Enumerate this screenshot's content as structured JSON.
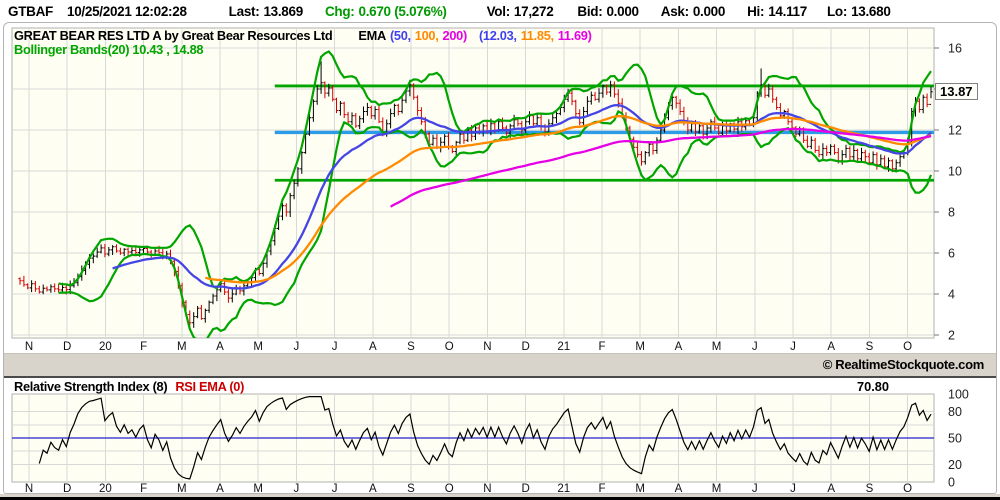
{
  "header": {
    "symbol": "GTBAF",
    "datetime": "10/25/2021 12:02:28",
    "last_label": "Last:",
    "last_value": "13.869",
    "chg_label": "Chg:",
    "chg_value": "0.670 (5.076%)",
    "vol_label": "Vol:",
    "vol_value": "17,272",
    "bid_label": "Bid:",
    "bid_value": "0.000",
    "ask_label": "Ask:",
    "ask_value": "0.000",
    "hi_label": "Hi:",
    "hi_value": "14.117",
    "lo_label": "Lo:",
    "lo_value": "13.680"
  },
  "legend": {
    "title": "GREAT BEAR RES LTD A by Great Bear Resources Ltd",
    "ema_label": "EMA",
    "ema_p1": "(50,",
    "ema_p2": "100,",
    "ema_p3": "200)",
    "ema_v1": "(12.03,",
    "ema_v2": "11.85,",
    "ema_v3": "11.69)",
    "bollinger": "Bollinger Bands(20) 10.43 , 14.88"
  },
  "footer": {
    "copyright": "© RealtimeStockquote.com"
  },
  "rsi_header": {
    "title": "Relative Strength Index (8)",
    "rsi_ema": "RSI EMA (0)",
    "last_value": "70.80"
  },
  "chart_data": [
    {
      "type": "candlestick",
      "title": "GREAT BEAR RES LTD A by Great Bear Resources Ltd",
      "x_labels": [
        "N",
        "D",
        "20",
        "F",
        "M",
        "A",
        "M",
        "J",
        "J",
        "A",
        "S",
        "O",
        "N",
        "D",
        "21",
        "F",
        "M",
        "A",
        "M",
        "J",
        "J",
        "A",
        "S",
        "O"
      ],
      "bars_per_month": 10,
      "last_month_bars": 7,
      "ylim": [
        1.76,
        16.88
      ],
      "yticks": [
        2,
        4,
        6,
        8,
        10,
        12,
        14,
        16
      ],
      "up_color": "#000000",
      "down_color": "#d40000",
      "closes": [
        4.65,
        4.45,
        4.3,
        4.5,
        4.25,
        4.1,
        4.28,
        4.2,
        4.35,
        4.25,
        4.2,
        4.32,
        4.22,
        4.4,
        4.55,
        4.85,
        5.15,
        5.45,
        5.75,
        5.85,
        6.05,
        6.25,
        5.95,
        6.15,
        6.3,
        6.1,
        6.0,
        6.18,
        6.05,
        6.12,
        6.02,
        6.15,
        6.22,
        6.05,
        5.92,
        6.1,
        6.02,
        5.85,
        5.95,
        5.6,
        5.1,
        4.4,
        3.6,
        3.0,
        2.6,
        2.9,
        3.3,
        2.8,
        3.2,
        3.6,
        3.9,
        4.2,
        4.5,
        4.1,
        3.8,
        4.0,
        4.3,
        4.15,
        4.4,
        4.6,
        4.8,
        5.2,
        5.0,
        5.5,
        6.1,
        6.6,
        7.2,
        7.8,
        8.3,
        8.0,
        8.8,
        9.4,
        10.1,
        10.9,
        11.8,
        12.6,
        13.4,
        14.0,
        14.3,
        13.8,
        14.05,
        13.5,
        12.95,
        13.3,
        12.75,
        12.4,
        12.7,
        12.2,
        12.55,
        12.9,
        13.1,
        12.7,
        13.0,
        12.4,
        11.9,
        12.3,
        12.8,
        13.2,
        12.9,
        13.45,
        13.9,
        14.2,
        13.6,
        12.95,
        12.4,
        11.8,
        11.3,
        11.6,
        11.15,
        11.4,
        11.7,
        11.2,
        10.95,
        11.4,
        11.8,
        11.5,
        12.0,
        11.7,
        12.1,
        11.9,
        12.2,
        11.9,
        12.3,
        12.0,
        12.4,
        12.1,
        11.85,
        12.2,
        12.5,
        12.3,
        12.0,
        12.4,
        12.7,
        12.3,
        12.6,
        12.2,
        11.9,
        12.3,
        12.6,
        12.8,
        13.1,
        13.5,
        13.8,
        13.4,
        12.8,
        12.35,
        12.9,
        13.4,
        13.7,
        13.5,
        13.8,
        14.15,
        13.85,
        14.2,
        13.75,
        13.3,
        12.7,
        12.1,
        11.55,
        11.15,
        10.8,
        10.45,
        10.9,
        11.3,
        11.0,
        11.5,
        12.0,
        12.6,
        13.2,
        13.6,
        13.3,
        12.9,
        12.4,
        12.0,
        12.3,
        11.9,
        12.2,
        11.8,
        12.1,
        12.4,
        12.1,
        11.85,
        12.2,
        11.95,
        12.3,
        12.05,
        12.4,
        12.15,
        12.45,
        12.25,
        12.6,
        13.8,
        14.2,
        13.7,
        14.0,
        13.5,
        13.1,
        12.7,
        12.9,
        12.4,
        12.1,
        11.8,
        12.0,
        11.5,
        11.2,
        11.5,
        11.0,
        10.8,
        11.1,
        10.9,
        11.2,
        10.9,
        10.5,
        10.8,
        11.1,
        10.7,
        11.0,
        10.6,
        10.9,
        10.7,
        10.4,
        10.8,
        10.3,
        10.6,
        10.2,
        10.5,
        10.1,
        10.4,
        10.7,
        10.9,
        11.4,
        12.9,
        13.4,
        13.0,
        13.6,
        13.25,
        13.87
      ],
      "wick_overrides": {
        "44": {
          "low": 2.35
        },
        "78": {
          "high": 15.35
        },
        "192": {
          "high": 15.0
        },
        "236": {
          "high": 14.12,
          "low": 13.55
        }
      },
      "overlays": {
        "emas": [
          {
            "label": 50,
            "calc_period": 24,
            "color": "#4545e6",
            "last": 12.03
          },
          {
            "label": 100,
            "calc_period": 48,
            "color": "#ff8a00",
            "last": 11.85
          },
          {
            "label": 200,
            "calc_period": 96,
            "color": "#e600e6",
            "last": 11.69
          }
        ],
        "bollinger": {
          "label": 20,
          "calc_period": 10,
          "k": 2,
          "color": "#00a500",
          "lower": 10.43,
          "upper": 14.88
        },
        "hlines": [
          {
            "y": 14.15,
            "color": "#00a500",
            "width": 2.8,
            "from_bar": 66
          },
          {
            "y": 11.88,
            "color": "#2d9ce6",
            "width": 3.4,
            "from_bar": 66
          },
          {
            "y": 9.55,
            "color": "#00a500",
            "width": 2.8,
            "from_bar": 66
          }
        ]
      },
      "last_price": "13.87"
    },
    {
      "type": "line",
      "indicator": "Relative Strength Index",
      "period_shown": 8,
      "calc_period": 5,
      "ylim": [
        0,
        100
      ],
      "yticks": [
        100,
        80,
        50,
        20,
        0
      ],
      "grid_levels": [
        80,
        65,
        35,
        20
      ],
      "mid_line": {
        "y": 50,
        "color": "#2222cc"
      },
      "line_color": "#000000",
      "last_value": "70.80"
    }
  ],
  "colors": {
    "plot_bg": "#fffef2",
    "grid": "#d9d9d9",
    "plot_border": "#b0b0b0",
    "chg_green": "#009900",
    "band_bg": "#d8d4cb"
  }
}
